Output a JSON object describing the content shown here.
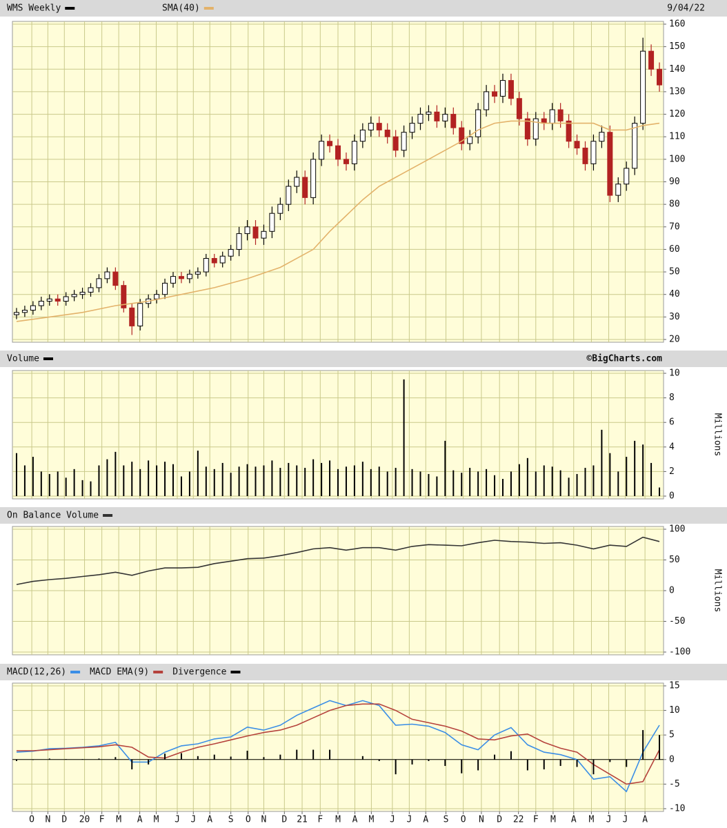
{
  "chart_data": [
    {
      "type": "candlestick",
      "name": "WMS Weekly",
      "color": "#000000",
      "down_color": "#b22222",
      "date": "9/04/22",
      "ylim": [
        20,
        160
      ],
      "yticks": [
        20,
        30,
        40,
        50,
        60,
        70,
        80,
        90,
        100,
        110,
        120,
        130,
        140,
        150,
        160
      ],
      "grid": true,
      "x": [
        0,
        2,
        4,
        6,
        8,
        10,
        12,
        14,
        16,
        18,
        20,
        22,
        24,
        26,
        28,
        30,
        32,
        34,
        36,
        38,
        40,
        42,
        44,
        46,
        48,
        50,
        52,
        54,
        56,
        58,
        60,
        62,
        64,
        66,
        68,
        70,
        72,
        74,
        76,
        78,
        80,
        82,
        84,
        86,
        88,
        90,
        92,
        94,
        96,
        98,
        100,
        102,
        104,
        106,
        108,
        110,
        112,
        114,
        116,
        118,
        120,
        122,
        124,
        126,
        128,
        130,
        132,
        134,
        136,
        138,
        140,
        142,
        144,
        146,
        148,
        150,
        152,
        154,
        156
      ],
      "open": [
        31,
        32,
        33,
        35,
        37,
        38,
        37,
        39,
        40,
        41,
        43,
        47,
        50,
        44,
        34,
        26,
        36,
        38,
        40,
        45,
        48,
        47,
        49,
        50,
        56,
        54,
        57,
        60,
        67,
        70,
        65,
        68,
        76,
        80,
        88,
        92,
        83,
        100,
        108,
        106,
        100,
        98,
        108,
        113,
        116,
        113,
        110,
        104,
        112,
        116,
        120,
        121,
        117,
        120,
        114,
        107,
        110,
        122,
        130,
        128,
        135,
        127,
        118,
        109,
        118,
        116,
        122,
        117,
        108,
        105,
        98,
        108,
        112,
        84,
        89,
        96,
        116,
        148,
        140
      ],
      "high": [
        34,
        35,
        37,
        39,
        40,
        40,
        41,
        42,
        43,
        45,
        49,
        52,
        52,
        46,
        36,
        38,
        40,
        42,
        47,
        50,
        50,
        51,
        52,
        58,
        58,
        59,
        62,
        70,
        73,
        73,
        71,
        79,
        83,
        91,
        95,
        95,
        103,
        111,
        111,
        109,
        103,
        111,
        116,
        119,
        119,
        116,
        113,
        115,
        119,
        123,
        124,
        124,
        123,
        123,
        117,
        113,
        125,
        133,
        133,
        138,
        138,
        130,
        121,
        121,
        121,
        125,
        125,
        120,
        111,
        108,
        111,
        115,
        115,
        92,
        99,
        119,
        154,
        151,
        143
      ],
      "low": [
        29,
        30,
        31,
        33,
        35,
        35,
        35,
        37,
        38,
        39,
        41,
        45,
        42,
        32,
        22,
        24,
        34,
        36,
        38,
        43,
        45,
        45,
        47,
        48,
        52,
        52,
        55,
        57,
        64,
        62,
        62,
        65,
        73,
        77,
        85,
        80,
        80,
        97,
        103,
        97,
        95,
        95,
        105,
        110,
        110,
        107,
        101,
        101,
        109,
        113,
        117,
        114,
        114,
        111,
        104,
        104,
        107,
        119,
        125,
        125,
        124,
        115,
        106,
        106,
        113,
        113,
        114,
        105,
        102,
        95,
        95,
        105,
        81,
        81,
        86,
        93,
        113,
        137,
        130
      ],
      "close": [
        32,
        33,
        35,
        37,
        38,
        37,
        39,
        40,
        41,
        43,
        47,
        50,
        44,
        34,
        26,
        36,
        38,
        40,
        45,
        48,
        47,
        49,
        50,
        56,
        54,
        57,
        60,
        67,
        70,
        65,
        68,
        76,
        80,
        88,
        92,
        83,
        100,
        108,
        106,
        100,
        98,
        108,
        113,
        116,
        113,
        110,
        104,
        112,
        116,
        120,
        121,
        117,
        120,
        114,
        107,
        110,
        122,
        130,
        128,
        135,
        127,
        118,
        109,
        118,
        116,
        122,
        117,
        108,
        105,
        98,
        108,
        112,
        84,
        89,
        96,
        116,
        148,
        140,
        133
      ],
      "series": [
        {
          "name": "SMA(40)",
          "color": "#e3b26a",
          "x": [
            0,
            8,
            16,
            24,
            28,
            32,
            40,
            48,
            56,
            64,
            72,
            76,
            80,
            84,
            88,
            92,
            96,
            100,
            104,
            108,
            112,
            116,
            120,
            124,
            128,
            132,
            136,
            140,
            144,
            148,
            152,
            156
          ],
          "values": [
            28,
            30,
            32,
            35,
            36,
            37,
            40,
            43,
            47,
            52,
            60,
            68,
            75,
            82,
            88,
            92,
            96,
            100,
            104,
            108,
            113,
            116,
            117,
            117,
            116,
            116,
            116,
            116,
            113,
            113,
            115,
            116
          ]
        }
      ]
    },
    {
      "type": "bar",
      "name": "Volume",
      "color": "#000000",
      "annotation": "©BigCharts.com",
      "ylabel": "Millions",
      "ylim": [
        0,
        10
      ],
      "yticks": [
        0,
        2,
        4,
        6,
        8,
        10
      ],
      "grid": true,
      "x": [
        0,
        2,
        4,
        6,
        8,
        10,
        12,
        14,
        16,
        18,
        20,
        22,
        24,
        26,
        28,
        30,
        32,
        34,
        36,
        38,
        40,
        42,
        44,
        46,
        48,
        50,
        52,
        54,
        56,
        58,
        60,
        62,
        64,
        66,
        68,
        70,
        72,
        74,
        76,
        78,
        80,
        82,
        84,
        86,
        88,
        90,
        92,
        94,
        96,
        98,
        100,
        102,
        104,
        106,
        108,
        110,
        112,
        114,
        116,
        118,
        120,
        122,
        124,
        126,
        128,
        130,
        132,
        134,
        136,
        138,
        140,
        142,
        144,
        146,
        148,
        150,
        152,
        154,
        156
      ],
      "values": [
        3.5,
        2.5,
        3.2,
        2.0,
        1.8,
        2.0,
        1.5,
        2.2,
        1.3,
        1.2,
        2.5,
        3.0,
        3.6,
        2.5,
        2.8,
        2.2,
        2.9,
        2.5,
        2.8,
        2.6,
        1.6,
        2.0,
        3.7,
        2.4,
        2.2,
        2.7,
        1.9,
        2.4,
        2.6,
        2.4,
        2.5,
        2.9,
        2.3,
        2.7,
        2.5,
        2.3,
        3.0,
        2.7,
        2.9,
        2.2,
        2.4,
        2.5,
        2.8,
        2.2,
        2.4,
        2.0,
        2.3,
        9.5,
        2.2,
        2.0,
        1.8,
        1.6,
        4.5,
        2.1,
        1.9,
        2.3,
        2.0,
        2.2,
        1.7,
        1.4,
        2.0,
        2.6,
        3.1,
        2.0,
        2.5,
        2.4,
        2.1,
        1.5,
        1.8,
        2.3,
        2.5,
        5.4,
        3.5,
        2.0,
        3.2,
        4.5,
        4.2,
        2.7,
        0.7
      ]
    },
    {
      "type": "line",
      "name": "On Balance Volume",
      "color": "#333333",
      "ylabel": "Millions",
      "ylim": [
        -100,
        100
      ],
      "yticks": [
        -100,
        -50,
        0,
        50,
        100
      ],
      "grid": true,
      "x": [
        0,
        4,
        8,
        12,
        16,
        20,
        24,
        28,
        32,
        36,
        40,
        44,
        48,
        52,
        56,
        60,
        64,
        68,
        72,
        76,
        80,
        84,
        88,
        92,
        96,
        100,
        104,
        108,
        112,
        116,
        120,
        124,
        128,
        132,
        136,
        140,
        144,
        148,
        152,
        156
      ],
      "values": [
        10,
        15,
        18,
        20,
        23,
        26,
        30,
        25,
        32,
        37,
        37,
        38,
        44,
        48,
        52,
        53,
        57,
        62,
        68,
        70,
        66,
        70,
        70,
        66,
        72,
        75,
        74,
        73,
        78,
        82,
        80,
        79,
        77,
        78,
        74,
        68,
        74,
        72,
        87,
        80
      ]
    },
    {
      "type": "line",
      "ylim": [
        -10,
        15
      ],
      "yticks": [
        -10,
        -5,
        0,
        5,
        10,
        15
      ],
      "grid": true,
      "xlim": [
        -1,
        157
      ],
      "xticks": [
        {
          "value": 3.7,
          "label": "O"
        },
        {
          "value": 7.6,
          "label": "N"
        },
        {
          "value": 11.6,
          "label": "D"
        },
        {
          "value": 16.5,
          "label": "20"
        },
        {
          "value": 20.7,
          "label": "F"
        },
        {
          "value": 24.8,
          "label": "M"
        },
        {
          "value": 29.9,
          "label": "A"
        },
        {
          "value": 33.9,
          "label": "M"
        },
        {
          "value": 39,
          "label": "J"
        },
        {
          "value": 42.9,
          "label": "J"
        },
        {
          "value": 46.9,
          "label": "A"
        },
        {
          "value": 52,
          "label": "S"
        },
        {
          "value": 56.2,
          "label": "O"
        },
        {
          "value": 60,
          "label": "N"
        },
        {
          "value": 65,
          "label": "D"
        },
        {
          "value": 69.3,
          "label": "21"
        },
        {
          "value": 73.7,
          "label": "F"
        },
        {
          "value": 78,
          "label": "M"
        },
        {
          "value": 82.1,
          "label": "A"
        },
        {
          "value": 86.1,
          "label": "M"
        },
        {
          "value": 91.2,
          "label": "J"
        },
        {
          "value": 95.3,
          "label": "J"
        },
        {
          "value": 99.3,
          "label": "A"
        },
        {
          "value": 104.2,
          "label": "S"
        },
        {
          "value": 108.4,
          "label": "O"
        },
        {
          "value": 112.8,
          "label": "N"
        },
        {
          "value": 117.2,
          "label": "D"
        },
        {
          "value": 121.8,
          "label": "22"
        },
        {
          "value": 126,
          "label": "F"
        },
        {
          "value": 130.2,
          "label": "M"
        },
        {
          "value": 135.2,
          "label": "A"
        },
        {
          "value": 139.5,
          "label": "M"
        },
        {
          "value": 143.7,
          "label": "J"
        },
        {
          "value": 147.7,
          "label": "J"
        },
        {
          "value": 152.5,
          "label": "A"
        }
      ],
      "x": [
        0,
        4,
        8,
        12,
        16,
        20,
        24,
        28,
        32,
        36,
        40,
        44,
        48,
        52,
        56,
        60,
        64,
        68,
        72,
        76,
        80,
        84,
        88,
        92,
        96,
        100,
        104,
        108,
        112,
        116,
        120,
        124,
        128,
        132,
        136,
        140,
        144,
        148,
        152,
        156
      ],
      "series": [
        {
          "name": "MACD(12,26)",
          "color": "#3a8ee6",
          "values": [
            1.5,
            1.7,
            2.2,
            2.3,
            2.5,
            2.8,
            3.5,
            -0.5,
            -0.5,
            1.5,
            2.8,
            3.2,
            4.2,
            4.6,
            6.6,
            6.0,
            7.0,
            9.0,
            10.5,
            12.0,
            11.0,
            12.0,
            11.0,
            7.0,
            7.2,
            6.8,
            5.5,
            3.0,
            2.0,
            5.0,
            6.5,
            3.0,
            1.5,
            1.0,
            0.0,
            -4.0,
            -3.5,
            -6.5,
            1.5,
            7.0
          ]
        },
        {
          "name": "MACD EMA(9)",
          "color": "#b5423c",
          "values": [
            1.8,
            1.8,
            2.0,
            2.2,
            2.4,
            2.6,
            3.0,
            2.5,
            0.5,
            0.3,
            1.5,
            2.5,
            3.2,
            4.0,
            4.8,
            5.5,
            6.0,
            7.0,
            8.5,
            10.0,
            11.0,
            11.3,
            11.3,
            10.0,
            8.2,
            7.5,
            6.8,
            5.8,
            4.2,
            4.0,
            4.8,
            5.2,
            3.5,
            2.3,
            1.5,
            -1.0,
            -3.0,
            -5.0,
            -4.5,
            2.0
          ]
        },
        {
          "name": "Divergence",
          "color": "#000000",
          "type": "bar",
          "values": [
            -0.3,
            -0.1,
            0.2,
            0.1,
            0.1,
            0.2,
            0.5,
            -2.0,
            -1.0,
            1.2,
            1.3,
            0.7,
            1.0,
            0.6,
            1.8,
            0.5,
            1.0,
            2.0,
            2.0,
            2.0,
            0.0,
            0.7,
            -0.3,
            -3.0,
            -1.0,
            -0.3,
            -1.3,
            -2.8,
            -2.2,
            1.0,
            1.7,
            -2.2,
            -2.0,
            -1.3,
            -1.5,
            -3.0,
            -0.5,
            -1.5,
            6.0,
            5.0
          ]
        }
      ]
    }
  ]
}
